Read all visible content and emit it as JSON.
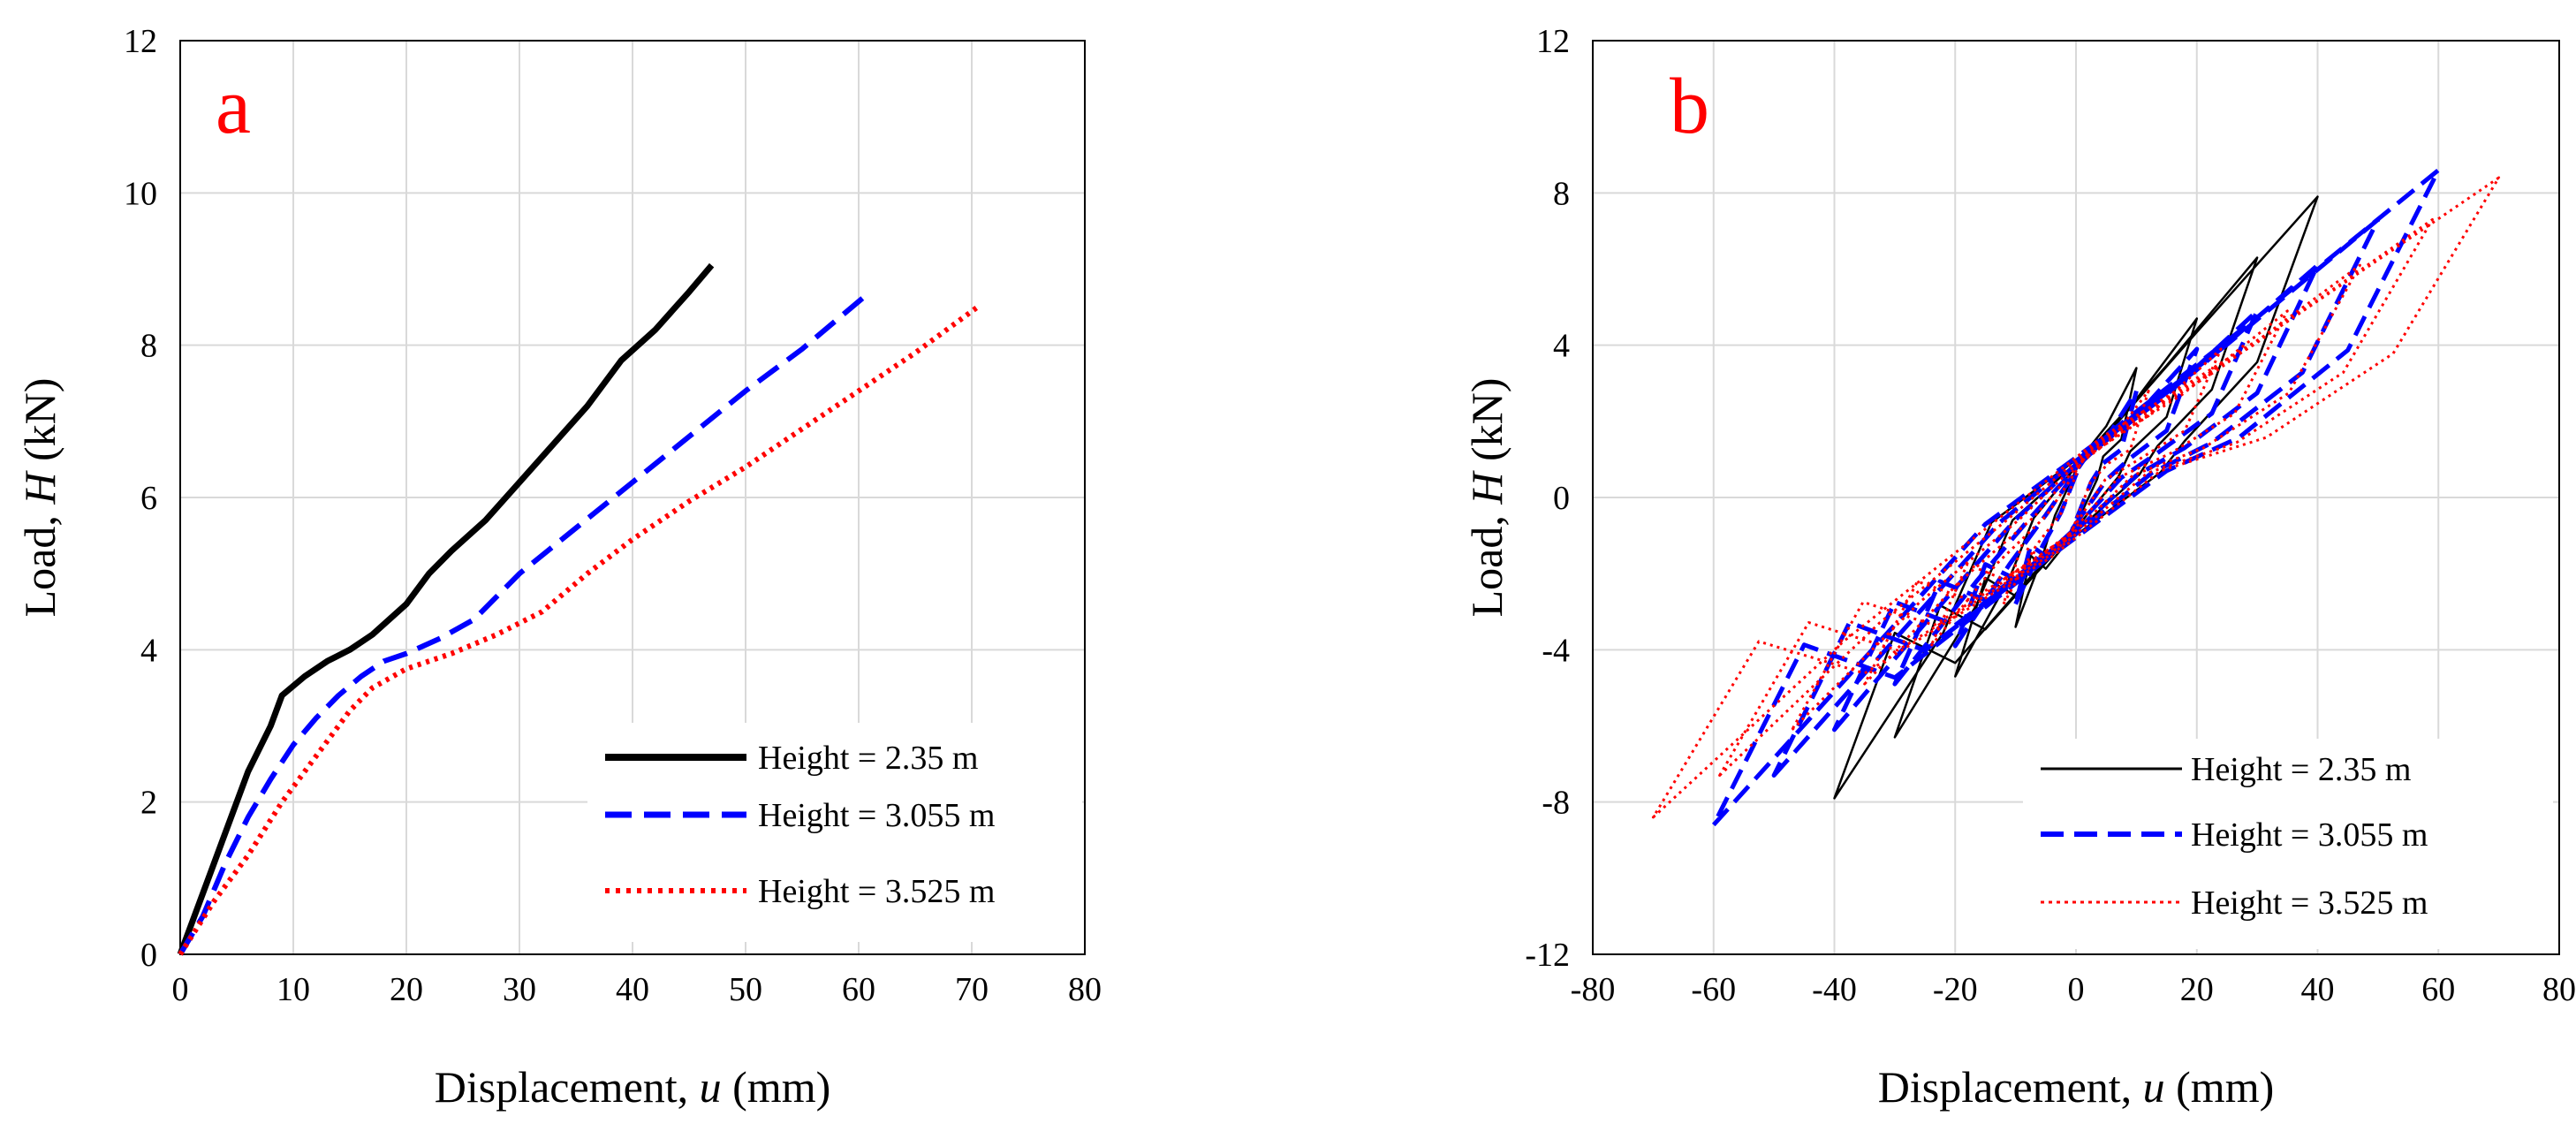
{
  "chart_data": [
    {
      "type": "line",
      "panel_label": "a",
      "xlabel_main": "Displacement, ",
      "xlabel_var": "u",
      "xlabel_unit": " (mm)",
      "ylabel_main": "Load, ",
      "ylabel_var": "H",
      "ylabel_unit": " (kN)",
      "xlim": [
        0,
        80
      ],
      "ylim": [
        0,
        12
      ],
      "xticks": [
        0,
        10,
        20,
        30,
        40,
        50,
        60,
        70,
        80
      ],
      "yticks": [
        0,
        2,
        4,
        6,
        8,
        10,
        12
      ],
      "grid": true,
      "legend_position": "bottom-right",
      "series": [
        {
          "name": "Height = 2.35 m",
          "color": "#000000",
          "style": "solid",
          "points": [
            [
              0,
              0
            ],
            [
              2,
              0.8
            ],
            [
              4,
              1.6
            ],
            [
              6,
              2.4
            ],
            [
              8,
              3.0
            ],
            [
              9,
              3.4
            ],
            [
              11,
              3.65
            ],
            [
              13,
              3.85
            ],
            [
              15,
              4.0
            ],
            [
              17,
              4.2
            ],
            [
              20,
              4.6
            ],
            [
              22,
              5.0
            ],
            [
              24,
              5.3
            ],
            [
              27,
              5.7
            ],
            [
              30,
              6.2
            ],
            [
              33,
              6.7
            ],
            [
              36,
              7.2
            ],
            [
              39,
              7.8
            ],
            [
              42,
              8.2
            ],
            [
              45,
              8.7
            ],
            [
              47,
              9.05
            ]
          ]
        },
        {
          "name": "Height = 3.055 m",
          "color": "#0000ff",
          "style": "dashed",
          "points": [
            [
              0,
              0
            ],
            [
              2,
              0.5
            ],
            [
              4,
              1.2
            ],
            [
              6,
              1.8
            ],
            [
              8,
              2.3
            ],
            [
              10,
              2.75
            ],
            [
              12,
              3.1
            ],
            [
              14,
              3.4
            ],
            [
              16,
              3.65
            ],
            [
              18,
              3.85
            ],
            [
              20,
              3.95
            ],
            [
              23,
              4.15
            ],
            [
              26,
              4.4
            ],
            [
              28,
              4.7
            ],
            [
              30,
              5.0
            ],
            [
              35,
              5.6
            ],
            [
              40,
              6.2
            ],
            [
              45,
              6.8
            ],
            [
              50,
              7.4
            ],
            [
              55,
              7.95
            ],
            [
              61,
              8.7
            ]
          ]
        },
        {
          "name": "Height = 3.525 m",
          "color": "#ff0000",
          "style": "dotted",
          "points": [
            [
              0,
              0
            ],
            [
              3,
              0.7
            ],
            [
              6,
              1.3
            ],
            [
              9,
              2.0
            ],
            [
              12,
              2.6
            ],
            [
              15,
              3.2
            ],
            [
              17,
              3.5
            ],
            [
              20,
              3.75
            ],
            [
              24,
              3.95
            ],
            [
              28,
              4.2
            ],
            [
              32,
              4.5
            ],
            [
              36,
              5.0
            ],
            [
              40,
              5.45
            ],
            [
              45,
              5.95
            ],
            [
              50,
              6.4
            ],
            [
              55,
              6.9
            ],
            [
              60,
              7.4
            ],
            [
              65,
              7.9
            ],
            [
              70.5,
              8.5
            ]
          ]
        }
      ]
    },
    {
      "type": "line",
      "panel_label": "b",
      "xlabel_main": "Displacement, ",
      "xlabel_var": "u",
      "xlabel_unit": " (mm)",
      "ylabel_main": "Load, ",
      "ylabel_var": "H",
      "ylabel_unit": " (kN)",
      "xlim": [
        -80,
        80
      ],
      "ylim": [
        -12,
        12
      ],
      "xticks": [
        -80,
        -60,
        -40,
        -20,
        0,
        20,
        40,
        60,
        80
      ],
      "yticks": [
        -12,
        -8,
        -4,
        0,
        4,
        8,
        12
      ],
      "grid": true,
      "legend_position": "bottom-right",
      "series": [
        {
          "name": "Height = 2.35 m",
          "color": "#000000",
          "style": "solid",
          "thin": true,
          "loops": [
            [
              10,
              3.4
            ],
            [
              20,
              4.7
            ],
            [
              30,
              6.3
            ],
            [
              40,
              7.9
            ]
          ],
          "pinch": [
            0.35,
            1.2
          ]
        },
        {
          "name": "Height = 3.055 m",
          "color": "#0000ff",
          "style": "dashed",
          "loops": [
            [
              10,
              2.8
            ],
            [
              20,
              3.9
            ],
            [
              30,
              4.9
            ],
            [
              40,
              6.1
            ],
            [
              50,
              7.3
            ],
            [
              60,
              8.6
            ]
          ],
          "pinch": [
            0.25,
            1.0
          ]
        },
        {
          "name": "Height = 3.525 m",
          "color": "#ff0000",
          "style": "dotted",
          "loops": [
            [
              12,
              2.8
            ],
            [
              24,
              3.9
            ],
            [
              35,
              4.9
            ],
            [
              47,
              6.1
            ],
            [
              59,
              7.3
            ],
            [
              70,
              8.4
            ]
          ],
          "pinch": [
            0.2,
            1.0
          ]
        }
      ]
    }
  ]
}
